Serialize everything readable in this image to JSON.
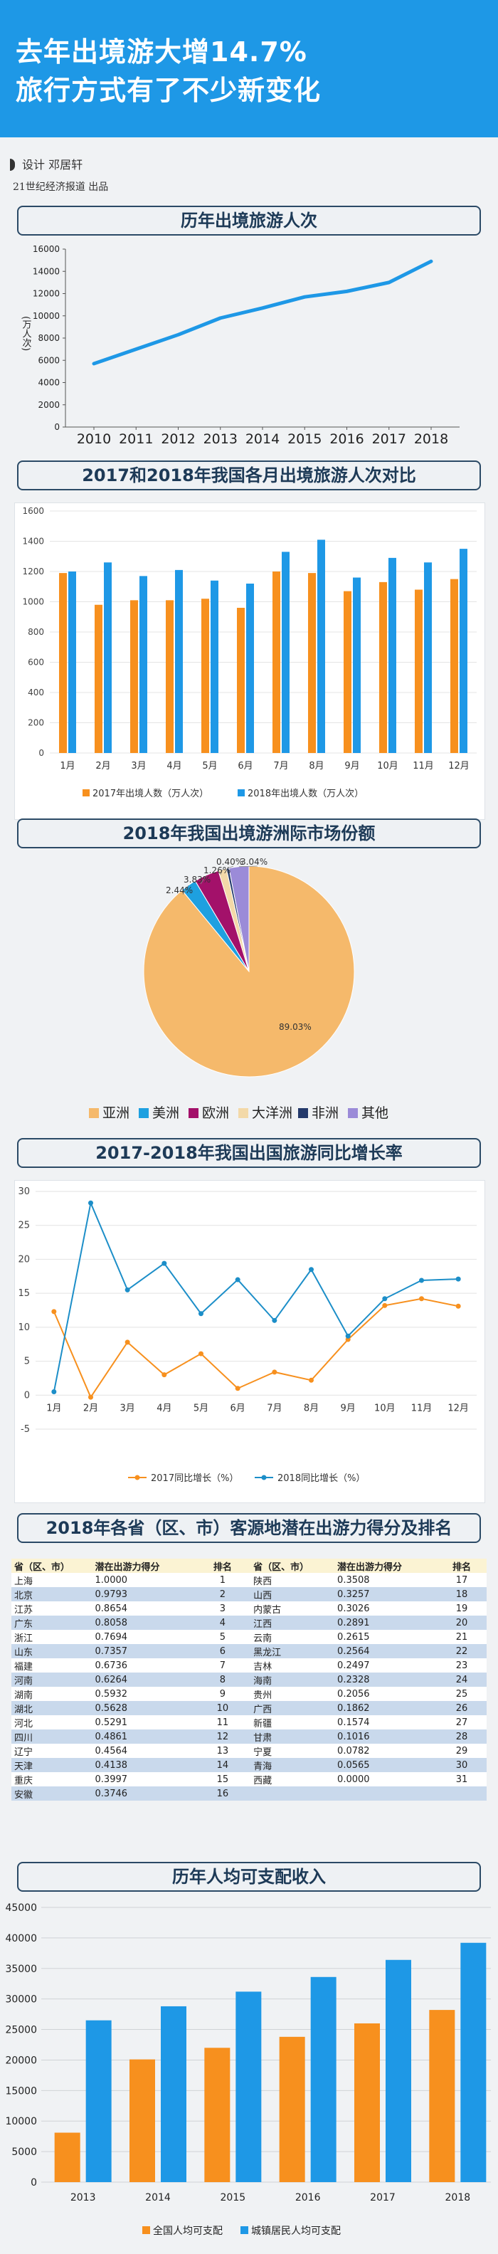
{
  "header": {
    "line1": "去年出境游大增14.7%",
    "line2": "旅行方式有了不少新变化"
  },
  "credit": {
    "designer": "设计  邓居轩",
    "publisher": "21世纪经济报道  出品"
  },
  "colors": {
    "blue": "#1e98e6",
    "orange": "#f7901e",
    "navy": "#2b4a66"
  },
  "chart_data": [
    {
      "type": "line",
      "title": "历年出境旅游人次",
      "ylabel": "(万人次)",
      "x": [
        "2010",
        "2011",
        "2012",
        "2013",
        "2014",
        "2015",
        "2016",
        "2017",
        "2018"
      ],
      "series": [
        {
          "values": [
            5700,
            7000,
            8300,
            9800,
            10700,
            11700,
            12200,
            13000,
            14900
          ]
        }
      ],
      "ylim": [
        0,
        16000
      ],
      "yticks": [
        "0",
        "2000",
        "4000",
        "6000",
        "8000",
        "10000",
        "12000",
        "14000",
        "16000"
      ]
    },
    {
      "type": "bar",
      "title": "2017和2018年我国各月出境旅游人次对比",
      "categories": [
        "1月",
        "2月",
        "3月",
        "4月",
        "5月",
        "6月",
        "7月",
        "8月",
        "9月",
        "10月",
        "11月",
        "12月"
      ],
      "series": [
        {
          "name": "2017年出境人数（万人次）",
          "values": [
            1190,
            980,
            1010,
            1010,
            1020,
            960,
            1200,
            1190,
            1070,
            1130,
            1080,
            1150
          ]
        },
        {
          "name": "2018年出境人数（万人次）",
          "values": [
            1200,
            1260,
            1170,
            1210,
            1140,
            1120,
            1330,
            1410,
            1160,
            1290,
            1260,
            1350
          ]
        }
      ],
      "ylim": [
        0,
        1600
      ],
      "yticks": [
        "0",
        "200",
        "400",
        "600",
        "800",
        "1000",
        "1200",
        "1400",
        "1600"
      ]
    },
    {
      "type": "pie",
      "title": "2018年我国出境游洲际市场份额",
      "labels": [
        "亚洲",
        "美洲",
        "欧洲",
        "大洋洲",
        "非洲",
        "其他"
      ],
      "values": [
        89.03,
        2.44,
        3.83,
        1.26,
        0.4,
        3.04
      ],
      "value_labels": [
        "89.03%",
        "2.44%",
        "3.83%",
        "1.26%",
        "0.40%",
        "3.04%"
      ],
      "colors": [
        "#f5b96b",
        "#1ea0e0",
        "#a3116a",
        "#f3d9a8",
        "#243a6b",
        "#9b8bd8"
      ]
    },
    {
      "type": "line",
      "title": "2017-2018年我国出国旅游同比增长率",
      "categories": [
        "1月",
        "2月",
        "3月",
        "4月",
        "5月",
        "6月",
        "7月",
        "8月",
        "9月",
        "10月",
        "11月",
        "12月"
      ],
      "series": [
        {
          "name": "2017同比增长（%）",
          "values": [
            12.3,
            -0.3,
            7.8,
            3.0,
            6.1,
            1.0,
            3.4,
            2.2,
            8.2,
            13.2,
            14.2,
            13.1
          ]
        },
        {
          "name": "2018同比增长（%）",
          "values": [
            0.5,
            28.3,
            15.5,
            19.4,
            12.0,
            17.0,
            11.0,
            18.5,
            8.7,
            14.2,
            16.9,
            17.1
          ]
        }
      ],
      "ylim": [
        -5,
        30
      ],
      "yticks": [
        "-5",
        "0",
        "5",
        "10",
        "15",
        "20",
        "25",
        "30"
      ]
    },
    {
      "type": "table",
      "title": "2018年各省（区、市）客源地潜在出游力得分及排名",
      "columns": [
        "省（区、市）",
        "潜在出游力得分",
        "排名",
        "省（区、市）",
        "潜在出游力得分",
        "排名"
      ],
      "rows": [
        [
          "上海",
          "1.0000",
          "1",
          "陕西",
          "0.3508",
          "17"
        ],
        [
          "北京",
          "0.9793",
          "2",
          "山西",
          "0.3257",
          "18"
        ],
        [
          "江苏",
          "0.8654",
          "3",
          "内蒙古",
          "0.3026",
          "19"
        ],
        [
          "广东",
          "0.8058",
          "4",
          "江西",
          "0.2891",
          "20"
        ],
        [
          "浙江",
          "0.7694",
          "5",
          "云南",
          "0.2615",
          "21"
        ],
        [
          "山东",
          "0.7357",
          "6",
          "黑龙江",
          "0.2564",
          "22"
        ],
        [
          "福建",
          "0.6736",
          "7",
          "吉林",
          "0.2497",
          "23"
        ],
        [
          "河南",
          "0.6264",
          "8",
          "海南",
          "0.2328",
          "24"
        ],
        [
          "湖南",
          "0.5932",
          "9",
          "贵州",
          "0.2056",
          "25"
        ],
        [
          "湖北",
          "0.5628",
          "10",
          "广西",
          "0.1862",
          "26"
        ],
        [
          "河北",
          "0.5291",
          "11",
          "新疆",
          "0.1574",
          "27"
        ],
        [
          "四川",
          "0.4861",
          "12",
          "甘肃",
          "0.1016",
          "28"
        ],
        [
          "辽宁",
          "0.4564",
          "13",
          "宁夏",
          "0.0782",
          "29"
        ],
        [
          "天津",
          "0.4138",
          "14",
          "青海",
          "0.0565",
          "30"
        ],
        [
          "重庆",
          "0.3997",
          "15",
          "西藏",
          "0.0000",
          "31"
        ],
        [
          "安徽",
          "0.3746",
          "16",
          "",
          "",
          ""
        ]
      ]
    },
    {
      "type": "bar",
      "title": "历年人均可支配收入",
      "categories": [
        "2013",
        "2014",
        "2015",
        "2016",
        "2017",
        "2018"
      ],
      "series": [
        {
          "name": "全国人均可支配",
          "values": [
            8100,
            20100,
            22000,
            23800,
            26000,
            28200
          ]
        },
        {
          "name": "城镇居民人均可支配",
          "values": [
            26500,
            28800,
            31200,
            33600,
            36400,
            39200
          ]
        }
      ],
      "ylim": [
        0,
        45000
      ],
      "yticks": [
        "0",
        "5000",
        "10000",
        "15000",
        "20000",
        "25000",
        "30000",
        "35000",
        "40000",
        "45000"
      ]
    }
  ]
}
